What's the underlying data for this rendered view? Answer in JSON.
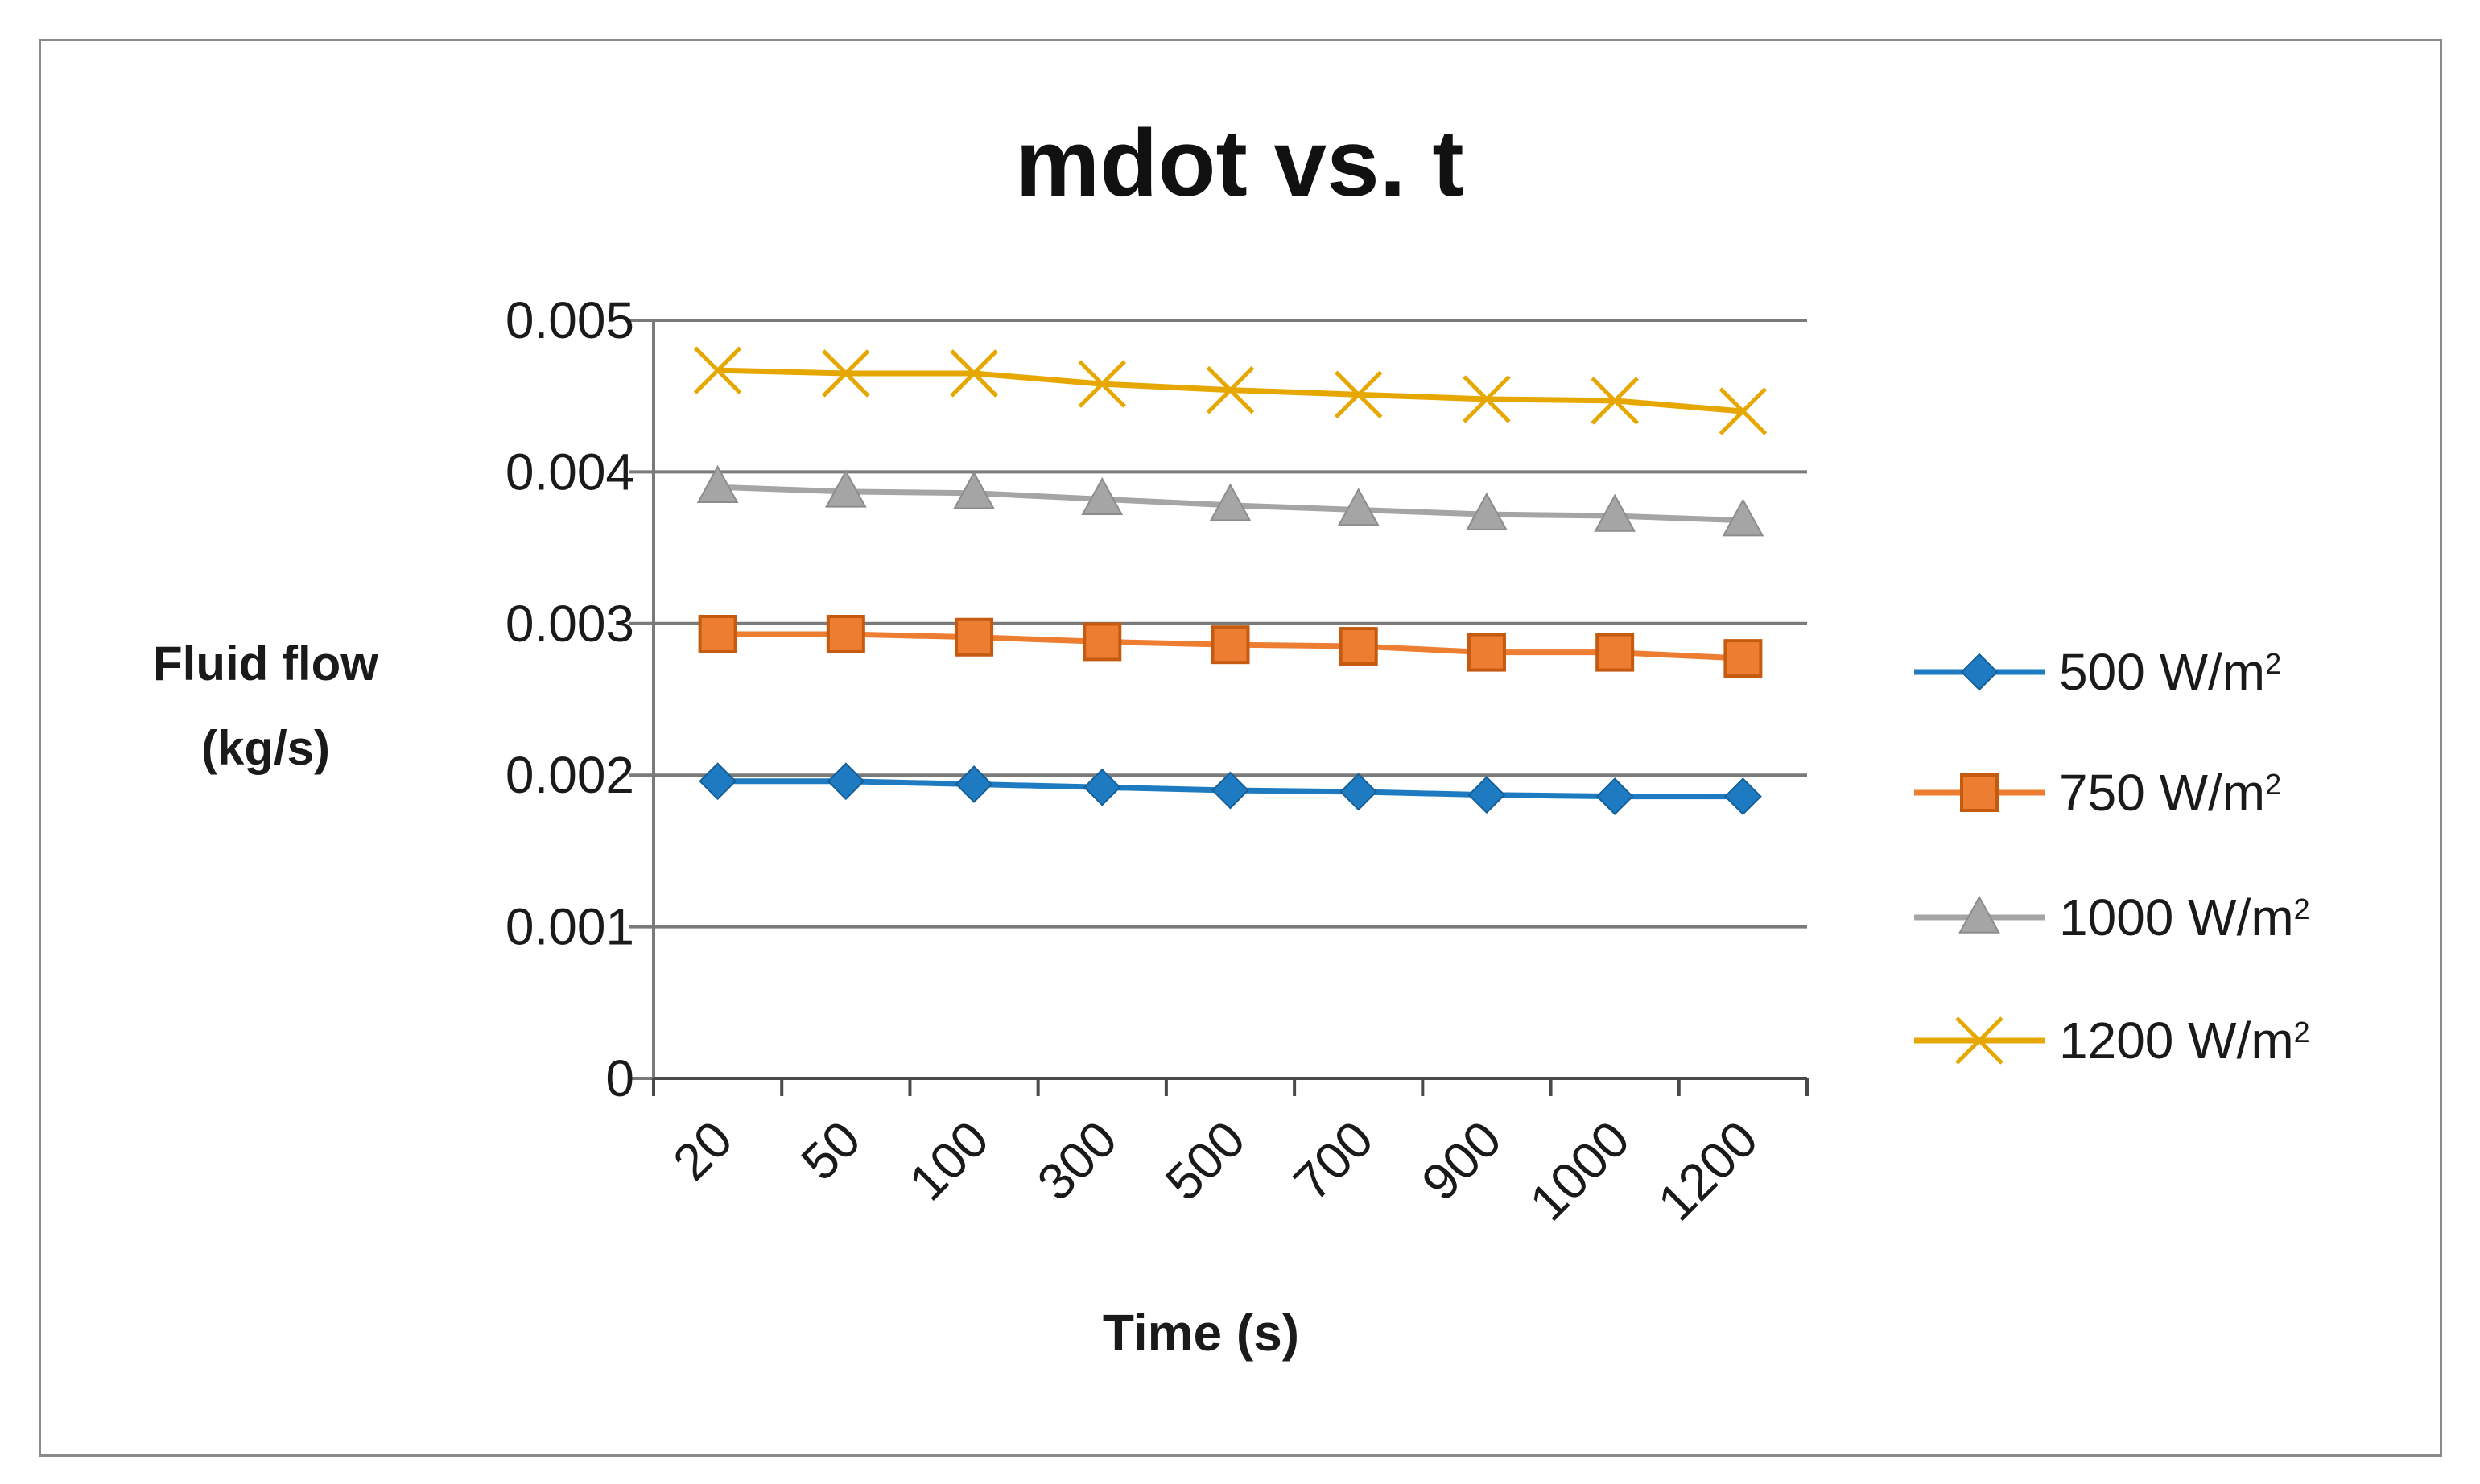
{
  "chart_data": {
    "type": "line",
    "title": "mdot vs. t",
    "xlabel": "Time (s)",
    "ylabel": [
      "Fluid flow",
      "(kg/s)"
    ],
    "categories": [
      "20",
      "50",
      "100",
      "300",
      "500",
      "700",
      "900",
      "1000",
      "1200"
    ],
    "ylim": [
      0,
      0.005
    ],
    "yticks": [
      0,
      0.001,
      0.002,
      0.003,
      0.004,
      0.005
    ],
    "ytick_labels": [
      "0",
      "0.001",
      "0.002",
      "0.003",
      "0.004",
      "0.005"
    ],
    "grid": true,
    "legend_position": "right",
    "series": [
      {
        "name": "500 W/m²",
        "label": "500 W/m",
        "sup": "2",
        "marker": "diamond",
        "color": "#1f7bc1",
        "values": [
          0.00196,
          0.00196,
          0.00194,
          0.00192,
          0.0019,
          0.00189,
          0.00187,
          0.00186,
          0.00186
        ]
      },
      {
        "name": "750 W/m²",
        "label": "750 W/m",
        "sup": "2",
        "marker": "square",
        "color": "#ed7d31",
        "values": [
          0.00293,
          0.00293,
          0.00291,
          0.00288,
          0.00286,
          0.00285,
          0.00281,
          0.00281,
          0.00277
        ]
      },
      {
        "name": "1000 W/m²",
        "label": "1000 W/m",
        "sup": "2",
        "marker": "triangle",
        "color": "#a5a5a5",
        "values": [
          0.0039,
          0.00387,
          0.00386,
          0.00382,
          0.00378,
          0.00375,
          0.00372,
          0.00371,
          0.00368
        ]
      },
      {
        "name": "1200 W/m²",
        "label": "1200 W/m",
        "sup": "2",
        "marker": "x",
        "color": "#e6a800",
        "values": [
          0.00467,
          0.00465,
          0.00465,
          0.00458,
          0.00454,
          0.00451,
          0.00448,
          0.00447,
          0.0044
        ]
      }
    ]
  }
}
